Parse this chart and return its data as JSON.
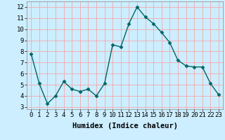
{
  "x": [
    0,
    1,
    2,
    3,
    4,
    5,
    6,
    7,
    8,
    9,
    10,
    11,
    12,
    13,
    14,
    15,
    16,
    17,
    18,
    19,
    20,
    21,
    22,
    23
  ],
  "y": [
    7.8,
    5.1,
    3.3,
    4.0,
    5.3,
    4.6,
    4.4,
    4.6,
    4.0,
    5.1,
    8.6,
    8.4,
    10.5,
    12.0,
    11.1,
    10.5,
    9.7,
    8.8,
    7.2,
    6.7,
    6.6,
    6.6,
    5.1,
    4.1
  ],
  "line_color": "#006666",
  "marker": "D",
  "markersize": 2.5,
  "linewidth": 1.0,
  "xlabel": "Humidex (Indice chaleur)",
  "xlabel_fontsize": 7.5,
  "xlabel_fontweight": "bold",
  "background_color": "#cceeff",
  "grid_color": "#ff9999",
  "xlim": [
    -0.5,
    23.5
  ],
  "ylim": [
    2.8,
    12.5
  ],
  "yticks": [
    3,
    4,
    5,
    6,
    7,
    8,
    9,
    10,
    11,
    12
  ],
  "xtick_labels": [
    "0",
    "1",
    "2",
    "3",
    "4",
    "5",
    "6",
    "7",
    "8",
    "9",
    "10",
    "11",
    "12",
    "13",
    "14",
    "15",
    "16",
    "17",
    "18",
    "19",
    "20",
    "21",
    "22",
    "23"
  ],
  "tick_fontsize": 6.5
}
